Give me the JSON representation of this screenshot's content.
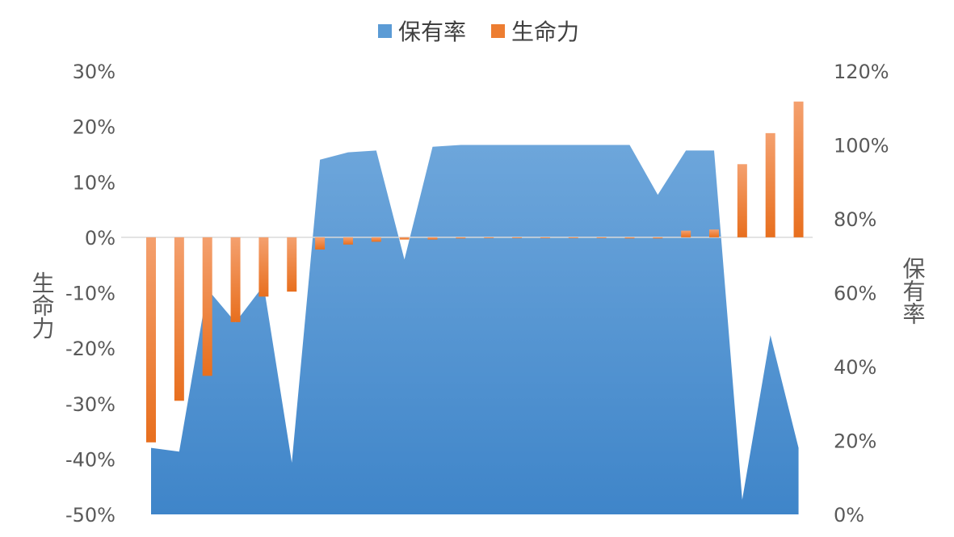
{
  "chart_data": {
    "type": "bar",
    "combo": "bar + area (dual axis)",
    "legend": {
      "position": "top",
      "entries": [
        {
          "label": "保有率",
          "color": "#5B9BD5"
        },
        {
          "label": "生命力",
          "color": "#ED7D31"
        }
      ]
    },
    "left_axis": {
      "title": "生命力",
      "range": [
        -0.5,
        0.3
      ],
      "ticks": [
        "30%",
        "20%",
        "10%",
        "0%",
        "-10%",
        "-20%",
        "-30%",
        "-40%",
        "-50%"
      ],
      "tick_values": [
        0.3,
        0.2,
        0.1,
        0.0,
        -0.1,
        -0.2,
        -0.3,
        -0.4,
        -0.5
      ]
    },
    "right_axis": {
      "title": "保有率",
      "range": [
        0,
        1.2
      ],
      "ticks": [
        "120%",
        "100%",
        "80%",
        "60%",
        "40%",
        "20%",
        "0%"
      ],
      "tick_values": [
        1.2,
        1.0,
        0.8,
        0.6,
        0.4,
        0.2,
        0.0
      ]
    },
    "grid": false,
    "series": [
      {
        "name": "保有率",
        "type": "area",
        "axis": "right",
        "color": "#5B9BD5",
        "values": [
          0.18,
          0.17,
          0.61,
          0.52,
          0.62,
          0.14,
          0.96,
          0.98,
          0.985,
          0.69,
          0.995,
          1.0,
          1.0,
          1.0,
          1.0,
          1.0,
          1.0,
          1.0,
          0.865,
          0.985,
          0.985,
          0.04,
          0.485,
          0.18
        ]
      },
      {
        "name": "生命力",
        "type": "bar",
        "axis": "left",
        "color": "#ED7D31",
        "values": [
          -0.37,
          -0.295,
          -0.25,
          -0.153,
          -0.107,
          -0.098,
          -0.022,
          -0.013,
          -0.008,
          -0.004,
          -0.004,
          -0.002,
          -0.001,
          -0.001,
          -0.001,
          -0.001,
          -0.001,
          -0.002,
          -0.002,
          0.012,
          0.014,
          0.132,
          0.188,
          0.245
        ]
      }
    ]
  }
}
